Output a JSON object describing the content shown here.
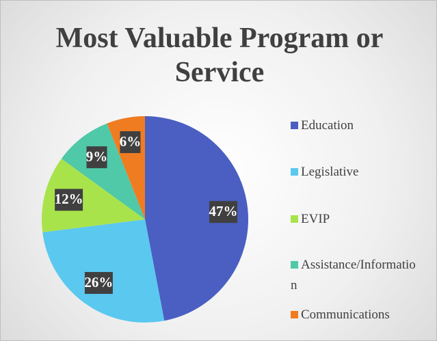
{
  "chart_data": {
    "type": "pie",
    "title": "Most Valuable Program or Service",
    "categories": [
      "Education",
      "Legislative",
      "EVIP",
      "Assistance/Information",
      "Communications"
    ],
    "values": [
      47,
      26,
      12,
      9,
      6
    ],
    "value_labels": [
      "47%",
      "26%",
      "12%",
      "9%",
      "6%"
    ],
    "colors": [
      "#4a5fc1",
      "#5bc8f0",
      "#a9e34b",
      "#4fc9a8",
      "#f07c22"
    ],
    "legend": "right"
  }
}
